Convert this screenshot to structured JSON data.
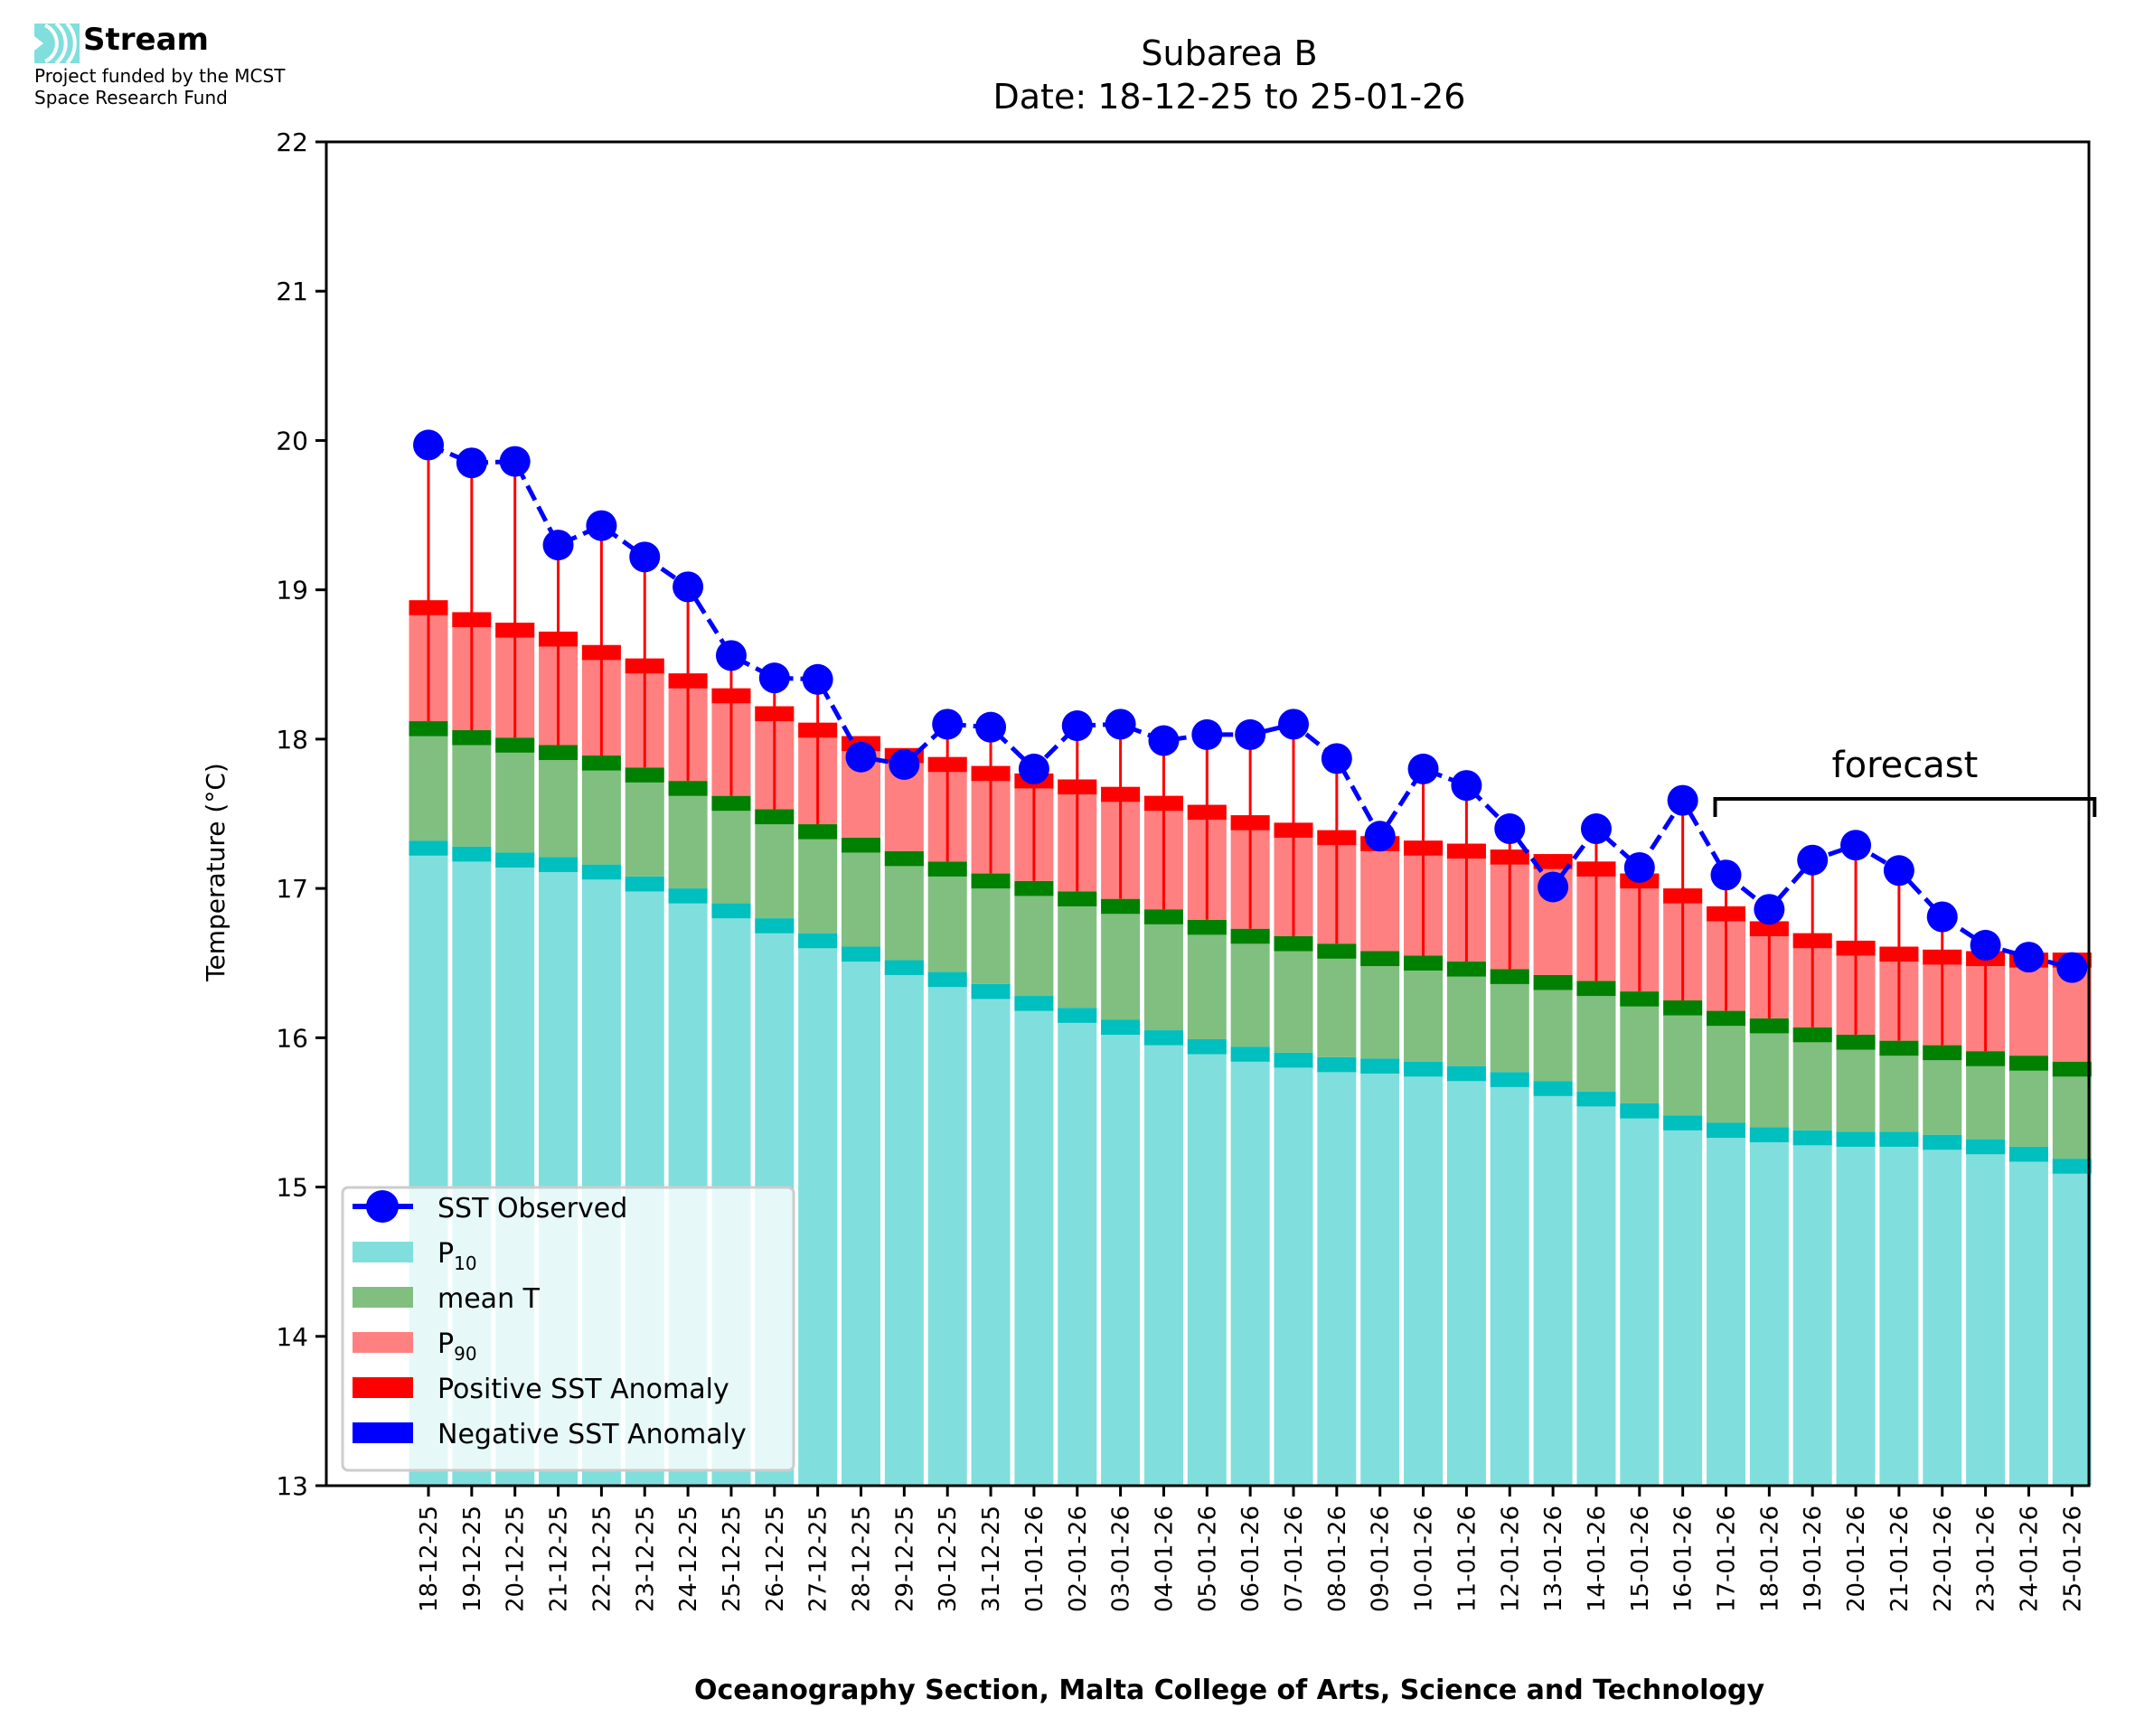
{
  "header": {
    "logo_name": "Stream",
    "logo_line1": "Project funded by the MCST",
    "logo_line2": "Space Research Fund"
  },
  "chart_data": {
    "type": "bar",
    "title_line1": "Subarea B",
    "title_line2": "Date: 18-12-25 to 25-01-26",
    "xlabel": "Oceanography Section, Malta College of Arts, Science and Technology",
    "ylabel": "Temperature (°C)",
    "ylim": [
      13,
      22
    ],
    "yticks": [
      13,
      14,
      15,
      16,
      17,
      18,
      19,
      20,
      21,
      22
    ],
    "grid": false,
    "legend_position": "lower-left",
    "categories": [
      "18-12-25",
      "19-12-25",
      "20-12-25",
      "21-12-25",
      "22-12-25",
      "23-12-25",
      "24-12-25",
      "25-12-25",
      "26-12-25",
      "27-12-25",
      "28-12-25",
      "29-12-25",
      "30-12-25",
      "31-12-25",
      "01-01-26",
      "02-01-26",
      "03-01-26",
      "04-01-26",
      "05-01-26",
      "06-01-26",
      "07-01-26",
      "08-01-26",
      "09-01-26",
      "10-01-26",
      "11-01-26",
      "12-01-26",
      "13-01-26",
      "14-01-26",
      "15-01-26",
      "16-01-26",
      "17-01-26",
      "18-01-26",
      "19-01-26",
      "20-01-26",
      "21-01-26",
      "22-01-26",
      "23-01-26",
      "24-01-26",
      "25-01-26"
    ],
    "series": [
      {
        "name": "P10",
        "legend_label": "P",
        "legend_sub": "10",
        "color": "#80dfdd",
        "band_color": "#00bfbf",
        "values": [
          17.32,
          17.28,
          17.24,
          17.21,
          17.16,
          17.08,
          17.0,
          16.9,
          16.8,
          16.7,
          16.61,
          16.52,
          16.44,
          16.36,
          16.28,
          16.2,
          16.12,
          16.05,
          15.99,
          15.94,
          15.9,
          15.87,
          15.86,
          15.84,
          15.81,
          15.77,
          15.71,
          15.64,
          15.56,
          15.48,
          15.43,
          15.4,
          15.38,
          15.37,
          15.37,
          15.35,
          15.32,
          15.27,
          15.19
        ]
      },
      {
        "name": "mean T",
        "legend_label": "mean T",
        "legend_sub": "",
        "color": "#80bf80",
        "band_color": "#008000",
        "values": [
          18.12,
          18.06,
          18.01,
          17.96,
          17.89,
          17.81,
          17.72,
          17.62,
          17.53,
          17.43,
          17.34,
          17.25,
          17.18,
          17.1,
          17.05,
          16.98,
          16.93,
          16.86,
          16.79,
          16.73,
          16.68,
          16.63,
          16.58,
          16.55,
          16.51,
          16.46,
          16.42,
          16.38,
          16.31,
          16.25,
          16.18,
          16.13,
          16.07,
          16.02,
          15.98,
          15.95,
          15.91,
          15.88,
          15.84
        ]
      },
      {
        "name": "P90",
        "legend_label": "P",
        "legend_sub": "90",
        "color": "#ff8080",
        "band_color": "#ff0000",
        "values": [
          18.93,
          18.85,
          18.78,
          18.72,
          18.63,
          18.54,
          18.44,
          18.34,
          18.22,
          18.11,
          18.02,
          17.94,
          17.88,
          17.82,
          17.77,
          17.73,
          17.68,
          17.62,
          17.56,
          17.49,
          17.44,
          17.39,
          17.35,
          17.32,
          17.3,
          17.26,
          17.23,
          17.18,
          17.1,
          17.0,
          16.88,
          16.78,
          16.7,
          16.65,
          16.61,
          16.59,
          16.58,
          16.57,
          16.57
        ]
      },
      {
        "name": "SST Observed",
        "legend_label": "SST Observed",
        "legend_sub": "",
        "color": "#0000ff",
        "values": [
          19.97,
          19.85,
          19.86,
          19.3,
          19.43,
          19.22,
          19.02,
          18.56,
          18.41,
          18.4,
          17.88,
          17.83,
          18.1,
          18.08,
          17.8,
          18.09,
          18.1,
          17.99,
          18.03,
          18.03,
          18.1,
          17.87,
          17.35,
          17.8,
          17.69,
          17.4,
          17.01,
          17.4,
          17.14,
          17.59,
          17.09,
          16.86,
          17.19,
          17.29,
          17.12,
          16.81,
          16.62,
          16.54,
          16.47
        ]
      }
    ],
    "legend_extra": [
      {
        "name": "Positive SST Anomaly",
        "color": "#ff0000"
      },
      {
        "name": "Negative SST Anomaly",
        "color": "#0000ff"
      }
    ],
    "annotation": {
      "text": "forecast",
      "from_category": "17-01-26",
      "to_category": "25-01-26",
      "level": 17.6
    }
  }
}
